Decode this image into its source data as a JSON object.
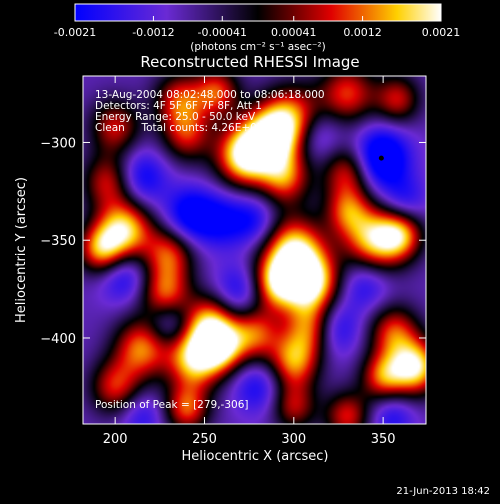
{
  "chart_data": {
    "type": "heatmap",
    "title": "Reconstructed RHESSI Image",
    "xlabel": "Heliocentric X (arcsec)",
    "ylabel": "Heliocentric Y (arcsec)",
    "xlim": [
      182,
      374
    ],
    "ylim": [
      -444,
      -266
    ],
    "x_ticks": [
      200,
      250,
      300,
      350
    ],
    "y_ticks": [
      -300,
      -350,
      -400
    ],
    "colorbar": {
      "colormap": "blue-purple-black-red-yellow-white",
      "min": -0.0021,
      "max": 0.0021,
      "tick_values": [
        -0.0021,
        -0.0012,
        -0.00041,
        0.00041,
        0.0012,
        0.0021
      ],
      "tick_labels": [
        "-0.0021",
        "-0.0012",
        "-0.00041",
        "0.00041",
        "0.0012",
        "0.0021"
      ],
      "units_label": "(photons cm⁻² s⁻¹ asec⁻²)"
    },
    "annotations": [
      "13-Aug-2004 08:02:48.000 to 08:06:18.000",
      "Detectors: 4F 5F 6F 7F 8F, Att 1",
      "Energy Range: 25.0 - 50.0 keV",
      "Clean     Total counts: 4.26E+03"
    ],
    "peak_label": "Position of Peak = [279,-306]",
    "peak_position": [
      279,
      -306
    ],
    "marked_point": [
      349,
      -308
    ],
    "grid": false,
    "features": [
      {
        "x": 272,
        "y": -307,
        "v": 0.95,
        "s": 11
      },
      {
        "x": 287,
        "y": -297,
        "v": 0.85,
        "s": 11
      },
      {
        "x": 300,
        "y": -288,
        "v": 0.6,
        "s": 12
      },
      {
        "x": 295,
        "y": -318,
        "v": 0.5,
        "s": 10
      },
      {
        "x": 240,
        "y": -296,
        "v": 0.35,
        "s": 10
      },
      {
        "x": 236,
        "y": -278,
        "v": 0.4,
        "s": 10
      },
      {
        "x": 257,
        "y": -274,
        "v": 0.45,
        "s": 9
      },
      {
        "x": 200,
        "y": -292,
        "v": 0.35,
        "s": 10
      },
      {
        "x": 196,
        "y": -320,
        "v": 0.35,
        "s": 10
      },
      {
        "x": 330,
        "y": -275,
        "v": 0.45,
        "s": 11
      },
      {
        "x": 358,
        "y": -278,
        "v": 0.35,
        "s": 9
      },
      {
        "x": 330,
        "y": -315,
        "v": 0.4,
        "s": 10
      },
      {
        "x": 205,
        "y": -345,
        "v": 0.85,
        "s": 11
      },
      {
        "x": 192,
        "y": -355,
        "v": 0.55,
        "s": 9
      },
      {
        "x": 230,
        "y": -357,
        "v": 0.45,
        "s": 10
      },
      {
        "x": 300,
        "y": -355,
        "v": 0.85,
        "s": 12
      },
      {
        "x": 310,
        "y": -372,
        "v": 0.9,
        "s": 11
      },
      {
        "x": 290,
        "y": -372,
        "v": 0.7,
        "s": 10
      },
      {
        "x": 345,
        "y": -350,
        "v": 0.8,
        "s": 12
      },
      {
        "x": 360,
        "y": -347,
        "v": 0.5,
        "s": 9
      },
      {
        "x": 330,
        "y": -335,
        "v": 0.35,
        "s": 9
      },
      {
        "x": 228,
        "y": -378,
        "v": 0.55,
        "s": 10
      },
      {
        "x": 253,
        "y": -392,
        "v": 0.6,
        "s": 10
      },
      {
        "x": 215,
        "y": -405,
        "v": 0.6,
        "s": 11
      },
      {
        "x": 245,
        "y": -410,
        "v": 0.9,
        "s": 11
      },
      {
        "x": 260,
        "y": -405,
        "v": 0.55,
        "s": 9
      },
      {
        "x": 278,
        "y": -398,
        "v": 0.5,
        "s": 10
      },
      {
        "x": 310,
        "y": -395,
        "v": 0.55,
        "s": 10
      },
      {
        "x": 300,
        "y": -412,
        "v": 0.6,
        "s": 10
      },
      {
        "x": 356,
        "y": -397,
        "v": 0.45,
        "s": 10
      },
      {
        "x": 368,
        "y": -415,
        "v": 0.9,
        "s": 10
      },
      {
        "x": 350,
        "y": -420,
        "v": 0.5,
        "s": 9
      },
      {
        "x": 200,
        "y": -425,
        "v": 0.4,
        "s": 10
      },
      {
        "x": 240,
        "y": -436,
        "v": 0.5,
        "s": 9
      },
      {
        "x": 330,
        "y": -440,
        "v": 0.4,
        "s": 9
      },
      {
        "x": 300,
        "y": -435,
        "v": 0.3,
        "s": 9
      },
      {
        "x": 349,
        "y": -308,
        "v": -0.95,
        "s": 11
      },
      {
        "x": 242,
        "y": -337,
        "v": -0.7,
        "s": 10
      },
      {
        "x": 215,
        "y": -318,
        "v": -0.55,
        "s": 10
      },
      {
        "x": 260,
        "y": -340,
        "v": -0.5,
        "s": 10
      },
      {
        "x": 278,
        "y": -340,
        "v": -0.45,
        "s": 9
      },
      {
        "x": 312,
        "y": -296,
        "v": -0.5,
        "s": 10
      },
      {
        "x": 322,
        "y": -395,
        "v": -0.6,
        "s": 10
      },
      {
        "x": 270,
        "y": -376,
        "v": -0.5,
        "s": 10
      },
      {
        "x": 230,
        "y": -392,
        "v": -0.5,
        "s": 9
      },
      {
        "x": 205,
        "y": -368,
        "v": -0.5,
        "s": 10
      },
      {
        "x": 340,
        "y": -372,
        "v": -0.45,
        "s": 10
      },
      {
        "x": 362,
        "y": -330,
        "v": -0.4,
        "s": 9
      },
      {
        "x": 280,
        "y": -425,
        "v": -0.45,
        "s": 10
      },
      {
        "x": 215,
        "y": -440,
        "v": -0.35,
        "s": 9
      },
      {
        "x": 355,
        "y": -440,
        "v": -0.4,
        "s": 9
      }
    ]
  },
  "footer": {
    "date": "21-Jun-2013 18:42"
  }
}
